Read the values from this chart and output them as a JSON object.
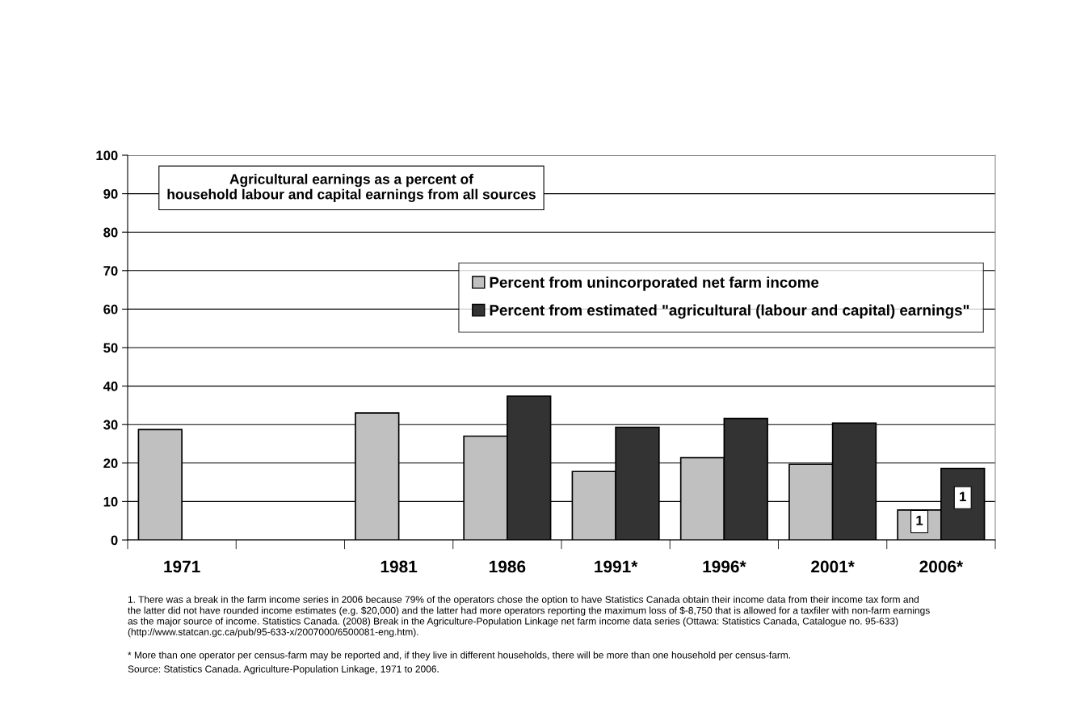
{
  "chart_data": {
    "type": "bar",
    "title": "Agricultural earnings as a percent of\nhousehold labour and capital earnings from all sources",
    "categories": [
      "1971",
      null,
      "1981",
      "1986",
      "1991*",
      "1996*",
      "2001*",
      "2006*"
    ],
    "series": [
      {
        "name": "Percent from unincorporated net farm income",
        "color": "#c0c0c0",
        "values": [
          28.7,
          null,
          33.0,
          27.0,
          17.8,
          21.4,
          19.7,
          7.8
        ]
      },
      {
        "name": "Percent from estimated \"agricultural (labour and capital) earnings\"",
        "color": "#333333",
        "values": [
          null,
          null,
          null,
          37.4,
          29.3,
          31.6,
          30.4,
          18.6
        ]
      }
    ],
    "ylim": [
      0,
      100
    ],
    "yticks": [
      0,
      10,
      20,
      30,
      40,
      50,
      60,
      70,
      80,
      90,
      100
    ],
    "grid": "y",
    "legend": "right",
    "annotations": [
      {
        "text": "1",
        "x": "2006*",
        "y": 4.8
      },
      {
        "text": "1",
        "x": "2006*",
        "y": 11
      },
      "1. There was a break in the farm income series in 2006 because 79% of the operators chose the option to have Statistics Canada obtain their income data from their income tax form and\nthe latter did not have rounded income estimates (e.g. $20,000) and the latter had more operators reporting the maximum loss of $-8,750 that is allowed for a taxfiler with non-farm earnings\nas the major source of income. Statistics Canada. (2008) Break in the Agriculture-Population Linkage net farm income data series (Ottawa: Statistics Canada, Catalogue no. 95-633)\n(http://www.statcan.gc.ca/pub/95-633-x/2007000/6500081-eng.htm).",
      "* More than one operator per census-farm may be reported and, if they live in different households, there will be more than one household per census-farm.",
      "Source: Statistics Canada. Agriculture-Population Linkage, 1971 to 2006."
    ]
  }
}
